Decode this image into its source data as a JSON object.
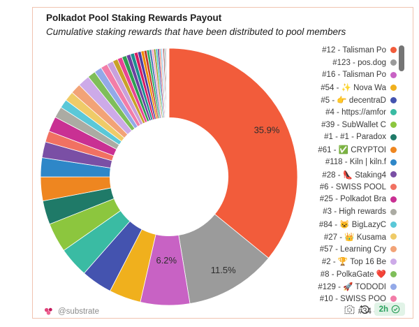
{
  "card": {
    "title": "Polkadot Pool Staking Rewards Payout",
    "subtitle": "Cumulative staking rewards that have been distributed to pool members"
  },
  "chart_data": {
    "type": "pie",
    "title": "Polkadot Pool Staking Rewards Payout",
    "subtitle": "Cumulative staking rewards that have been distributed to pool members",
    "donut_hole_ratio": 0.46,
    "start_angle": "12-o-clock",
    "direction": "clockwise",
    "legend_position": "right",
    "shown_percent_labels": [
      "35.9%",
      "11.5%",
      "6.2%"
    ],
    "slices": [
      {
        "label": "#12 - Talisman Po",
        "value": 35.9,
        "pct_label": "35.9%",
        "color": "#F25C3B"
      },
      {
        "label": "#123 - pos.dog",
        "value": 11.5,
        "pct_label": "11.5%",
        "color": "#9B9B9B"
      },
      {
        "label": "#16 - Talisman Po",
        "value": 6.2,
        "pct_label": "6.2%",
        "color": "#C862C4"
      },
      {
        "label": "#54 - ✨ Nova Wa",
        "value": 4.0,
        "color": "#F0B01D"
      },
      {
        "label": "#5 - 👉 decentraD",
        "value": 3.9,
        "color": "#4453AF"
      },
      {
        "label": "#4 - https://amfor",
        "value": 3.8,
        "color": "#3ABBA3"
      },
      {
        "label": "#39 - SubWallet C",
        "value": 3.7,
        "color": "#8CC63E"
      },
      {
        "label": "#1 - #1 - Paradox",
        "value": 3.0,
        "color": "#1F7A68"
      },
      {
        "label": "#61 - ✅ CRYPTOI",
        "value": 3.0,
        "color": "#EE8620"
      },
      {
        "label": "#118 - Kiln | kiln.f",
        "value": 2.4,
        "color": "#2E87C8"
      },
      {
        "label": "#28 - 👠 Staking4",
        "value": 2.0,
        "color": "#7A4FA5"
      },
      {
        "label": "#6 - SWISS POOL",
        "value": 1.4,
        "color": "#F17162"
      },
      {
        "label": "#25 - Polkadot Bra",
        "value": 1.9,
        "color": "#C93093"
      },
      {
        "label": "#3 - High rewards",
        "value": 1.4,
        "color": "#ABABA3"
      },
      {
        "label": "#84 - 😺 BigLazyC",
        "value": 1.1,
        "color": "#5AC8D8"
      },
      {
        "label": "#27 - 👑 Kusama",
        "value": 1.2,
        "color": "#EFCB68"
      },
      {
        "label": "#57 - Learning Cry",
        "value": 1.3,
        "color": "#F2A377"
      },
      {
        "label": "#2 - 🏆 Top 16 Be",
        "value": 1.5,
        "color": "#CDAAE8"
      },
      {
        "label": "#8 - PolkaGate ❤️",
        "value": 1.0,
        "color": "#7FBE5A"
      },
      {
        "label": "#129 - 🚀 TODODI",
        "value": 0.95,
        "color": "#93A9E8"
      },
      {
        "label": "#10 - SWISS POO",
        "value": 0.85,
        "color": "#F27DA8"
      },
      {
        "label": "#34 - St",
        "value": 0.8,
        "color": "#C9A0DC"
      },
      {
        "label": "",
        "value": 0.64,
        "color": "#C9A227"
      },
      {
        "label": "",
        "value": 0.61,
        "color": "#E84393"
      },
      {
        "label": "",
        "value": 0.57,
        "color": "#2E9E52"
      },
      {
        "label": "",
        "value": 0.53,
        "color": "#6C3FA0"
      },
      {
        "label": "",
        "value": 0.49,
        "color": "#1D8F8F"
      },
      {
        "label": "",
        "value": 0.45,
        "color": "#D81B60"
      },
      {
        "label": "",
        "value": 0.42,
        "color": "#4B3FA0"
      },
      {
        "label": "",
        "value": 0.38,
        "color": "#F08C00"
      },
      {
        "label": "",
        "value": 0.34,
        "color": "#C0392B"
      },
      {
        "label": "",
        "value": 0.32,
        "color": "#27AE60"
      },
      {
        "label": "",
        "value": 0.29,
        "color": "#4A78B5"
      },
      {
        "label": "",
        "value": 0.27,
        "color": "#F5A3C7"
      },
      {
        "label": "",
        "value": 0.24,
        "color": "#96961E"
      },
      {
        "label": "",
        "value": 0.23,
        "color": "#40C4BB"
      },
      {
        "label": "",
        "value": 0.21,
        "color": "#5C2D91"
      },
      {
        "label": "",
        "value": 0.19,
        "color": "#F4846C"
      },
      {
        "label": "",
        "value": 0.17,
        "color": "#77CFEF"
      },
      {
        "label": "",
        "value": 0.15,
        "color": "#E8C1D8"
      },
      {
        "label": "",
        "value": 0.14,
        "color": "#8B1E1E"
      },
      {
        "label": "",
        "value": 0.12,
        "color": "#2E9E6B"
      },
      {
        "label": "",
        "value": 0.11,
        "color": "#C86CC8"
      },
      {
        "label": "",
        "value": 0.09,
        "color": "#D19A2F"
      },
      {
        "label": "",
        "value": 0.08,
        "color": "#B3A9A0"
      },
      {
        "label": "",
        "value": 0.07,
        "color": "#C4C4C4"
      },
      {
        "label": "",
        "value": 0.06,
        "color": "#9E9E9E"
      },
      {
        "label": "",
        "value": 0.05,
        "color": "#BFB8AE"
      }
    ]
  },
  "legend": {
    "scrollable": true,
    "items": [
      {
        "label": "#12 - Talisman Po",
        "color": "#F25C3B"
      },
      {
        "label": "#123 - pos.dog",
        "color": "#9B9B9B"
      },
      {
        "label": "#16 - Talisman Po",
        "color": "#C862C4"
      },
      {
        "label": "#54 - ✨ Nova Wa",
        "color": "#F0B01D"
      },
      {
        "label": "#5 - 👉 decentraD",
        "color": "#4453AF"
      },
      {
        "label": "#4 - https://amfor",
        "color": "#3ABBA3"
      },
      {
        "label": "#39 - SubWallet C",
        "color": "#8CC63E"
      },
      {
        "label": "#1 - #1 - Paradox",
        "color": "#1F7A68"
      },
      {
        "label": "#61 - ✅ CRYPTOI",
        "color": "#EE8620"
      },
      {
        "label": "#118 - Kiln | kiln.f",
        "color": "#2E87C8"
      },
      {
        "label": "#28 - 👠 Staking4",
        "color": "#7A4FA5"
      },
      {
        "label": "#6 - SWISS POOL",
        "color": "#F17162"
      },
      {
        "label": "#25 - Polkadot Bra",
        "color": "#C93093"
      },
      {
        "label": "#3 - High rewards",
        "color": "#ABABA3"
      },
      {
        "label": "#84 - 😺 BigLazyC",
        "color": "#5AC8D8"
      },
      {
        "label": "#27 - 👑 Kusama",
        "color": "#EFCB68"
      },
      {
        "label": "#57 - Learning Cry",
        "color": "#F2A377"
      },
      {
        "label": "#2 - 🏆 Top 16 Be",
        "color": "#CDAAE8"
      },
      {
        "label": "#8 - PolkaGate ❤️",
        "color": "#7FBE5A"
      },
      {
        "label": "#129 - 🚀 TODODI",
        "color": "#93A9E8"
      },
      {
        "label": "#10 - SWISS POO",
        "color": "#F27DA8"
      },
      {
        "label": "#34 - St",
        "color": "#C9A0DC"
      }
    ]
  },
  "footer": {
    "author": "@substrate",
    "age": "2h"
  },
  "icons": {
    "camera": "camera-icon",
    "undo": "undo-icon",
    "check": "check-icon",
    "logo": "substrate-logo-icon"
  }
}
